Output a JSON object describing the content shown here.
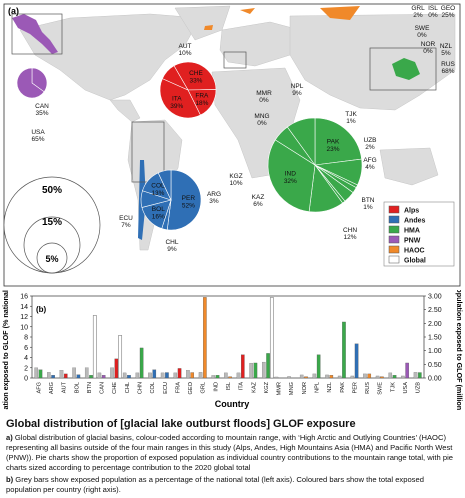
{
  "panel_a": {
    "label": "(a)",
    "legend": [
      {
        "label": "Alps",
        "color": "#e02020"
      },
      {
        "label": "Andes",
        "color": "#2f6fb5"
      },
      {
        "label": "HMA",
        "color": "#3aa84a"
      },
      {
        "label": "PNW",
        "color": "#9b59b6"
      },
      {
        "label": "HAOC",
        "color": "#f0892a"
      },
      {
        "label": "Global",
        "color": "#ffffff"
      }
    ],
    "size_legend": [
      "50%",
      "15%",
      "5%"
    ],
    "map_labels": [
      {
        "text": "AUT",
        "sub": "10%"
      },
      {
        "text": "MMR",
        "sub": "0%"
      },
      {
        "text": "MNG",
        "sub": "0%"
      },
      {
        "text": "NPL",
        "sub": "9%"
      },
      {
        "text": "TJK",
        "sub": "1%"
      },
      {
        "text": "UZB",
        "sub": "2%"
      },
      {
        "text": "AFG",
        "sub": "4%"
      },
      {
        "text": "KGZ",
        "sub": "10%"
      },
      {
        "text": "KAZ",
        "sub": "6%"
      },
      {
        "text": "BTN",
        "sub": "1%"
      },
      {
        "text": "CHN",
        "sub": "12%"
      },
      {
        "text": "CAN",
        "sub": "35%"
      },
      {
        "text": "USA",
        "sub": "65%"
      },
      {
        "text": "ECU",
        "sub": "7%"
      },
      {
        "text": "ARG",
        "sub": "3%"
      },
      {
        "text": "CHL",
        "sub": "9%"
      },
      {
        "text": "GRL",
        "sub": "2%"
      },
      {
        "text": "ISL",
        "sub": "0%"
      },
      {
        "text": "GEO",
        "sub": "25%"
      },
      {
        "text": "SWE",
        "sub": "0%"
      },
      {
        "text": "NOR",
        "sub": "0%"
      },
      {
        "text": "NZL",
        "sub": "5%"
      },
      {
        "text": "RUS",
        "sub": "68%"
      }
    ]
  },
  "chart_data": [
    {
      "type": "pie",
      "name": "Alps",
      "slices": [
        {
          "label": "CHE",
          "value": 33,
          "display": "33%",
          "color": "#e02020"
        },
        {
          "label": "FRA",
          "value": 18,
          "display": "18%",
          "color": "#e02020"
        },
        {
          "label": "ITA",
          "value": 39,
          "display": "39%",
          "color": "#e02020"
        },
        {
          "label": "AUT",
          "value": 10,
          "display": "",
          "color": "#e02020"
        }
      ]
    },
    {
      "type": "pie",
      "name": "PNW",
      "slices": [
        {
          "label": "CAN",
          "value": 35,
          "display": "",
          "color": "#9b59b6"
        },
        {
          "label": "USA",
          "value": 65,
          "display": "",
          "color": "#9b59b6"
        }
      ]
    },
    {
      "type": "pie",
      "name": "HMA",
      "slices": [
        {
          "label": "PAK",
          "value": 23,
          "display": "23%",
          "color": "#3aa84a"
        },
        {
          "label": "NPL",
          "value": 9,
          "display": "",
          "color": "#3aa84a"
        },
        {
          "label": "TJK",
          "value": 1,
          "display": "",
          "color": "#3aa84a"
        },
        {
          "label": "UZB",
          "value": 2,
          "display": "",
          "color": "#3aa84a"
        },
        {
          "label": "AFG",
          "value": 4,
          "display": "",
          "color": "#3aa84a"
        },
        {
          "label": "BTN",
          "value": 1,
          "display": "",
          "color": "#3aa84a"
        },
        {
          "label": "CHN",
          "value": 12,
          "display": "",
          "color": "#3aa84a"
        },
        {
          "label": "IND",
          "value": 32,
          "display": "32%",
          "color": "#3aa84a"
        },
        {
          "label": "KAZ",
          "value": 6,
          "display": "",
          "color": "#3aa84a"
        },
        {
          "label": "KGZ",
          "value": 10,
          "display": "",
          "color": "#3aa84a"
        }
      ]
    },
    {
      "type": "pie",
      "name": "Andes",
      "slices": [
        {
          "label": "PER",
          "value": 52,
          "display": "52%",
          "color": "#2f6fb5"
        },
        {
          "label": "ARG",
          "value": 3,
          "display": "",
          "color": "#2f6fb5"
        },
        {
          "label": "BOL",
          "value": 16,
          "display": "16%",
          "color": "#2f6fb5"
        },
        {
          "label": "CHL",
          "value": 9,
          "display": "",
          "color": "#2f6fb5"
        },
        {
          "label": "COL",
          "value": 13,
          "display": "13%",
          "color": "#2f6fb5"
        },
        {
          "label": "ECU",
          "value": 7,
          "display": "",
          "color": "#2f6fb5"
        }
      ]
    },
    {
      "type": "bar",
      "label": "(b)",
      "categories": [
        "AFG",
        "ARG",
        "AUT",
        "BOL",
        "BTN",
        "CAN",
        "CHE",
        "CHL",
        "CHN",
        "COL",
        "ECU",
        "FRA",
        "GEO",
        "GRL",
        "IND",
        "ISL",
        "ITA",
        "KAZ",
        "KGZ",
        "MMR",
        "MNG",
        "NOR",
        "NPL",
        "NZL",
        "PAK",
        "PER",
        "RUS",
        "SWE",
        "TJK",
        "USA",
        "UZB"
      ],
      "regions": [
        "HMA",
        "Andes",
        "Alps",
        "Andes",
        "HMA",
        "PNW",
        "Alps",
        "Andes",
        "HMA",
        "Andes",
        "Andes",
        "Alps",
        "HAOC",
        "HAOC",
        "HMA",
        "HAOC",
        "Alps",
        "HMA",
        "HMA",
        "HMA",
        "HMA",
        "HAOC",
        "HMA",
        "HAOC",
        "HMA",
        "Andes",
        "HAOC",
        "HAOC",
        "HMA",
        "PNW",
        "HMA"
      ],
      "series": [
        {
          "axis": "left",
          "values": [
            2.0,
            1.1,
            1.5,
            2.0,
            2.0,
            1.0,
            2.0,
            1.0,
            1.0,
            1.0,
            1.0,
            1.0,
            1.5,
            1.1,
            0.5,
            1.0,
            1.0,
            2.9,
            3.1,
            0.2,
            0.3,
            0.6,
            0.8,
            0.6,
            0.4,
            0.4,
            0.8,
            0.4,
            1.0,
            0.4,
            1.1
          ]
        },
        {
          "axis": "right",
          "values": [
            0.3,
            0.1,
            0.15,
            0.12,
            0.1,
            0.1,
            0.7,
            0.1,
            1.1,
            0.3,
            0.2,
            0.35,
            0.2,
            2.95,
            0.1,
            0.05,
            0.85,
            0.55,
            0.9,
            0.0,
            0.0,
            0.05,
            0.85,
            0.1,
            2.05,
            1.25,
            0.15,
            0.05,
            0.1,
            0.55,
            0.2
          ]
        },
        {
          "axis": "left",
          "values": [
            0.0,
            0.0,
            0.0,
            0.0,
            12.2,
            0.0,
            8.3,
            0.0,
            0.0,
            0.0,
            0.0,
            0.0,
            0.0,
            0.0,
            0.0,
            0.0,
            0.0,
            0.0,
            15.7,
            0.0,
            0.0,
            0.0,
            0.0,
            0.0,
            0.0,
            0.0,
            0.0,
            0.0,
            0.0,
            0.0,
            0.0
          ]
        }
      ],
      "y_left": {
        "label": "Population exposed to GLOF (% national total)",
        "ticks": [
          "0",
          "2",
          "4",
          "6",
          "8",
          "10",
          "12",
          "14",
          "16"
        ],
        "range": [
          0,
          16
        ]
      },
      "y_right": {
        "label": "Population exposed to GLOF (millions)",
        "ticks": [
          "0.00",
          "0.50",
          "1.00",
          "1.50",
          "2.00",
          "2.50",
          "3.00"
        ],
        "range": [
          0,
          3
        ]
      },
      "xlabel": "Country"
    }
  ],
  "caption": {
    "title": "Global distribution of [glacial lake outburst floods] GLOF exposure",
    "a_label": "a)",
    "a_text": "Global distribution of glacial basins, colour-coded according to mountain range, with ‘High Arctic and Outlying Countries’ (HAOC) representing all basins outside of the four main ranges in this study (Alps, Andes, High Mountains Asia (HMA) and Pacific North West (PNW)). Pie charts show the proportion of exposed population as individual country contributions to the mountain range total, with pie charts sized according to percentage contribution to the 2020 global total",
    "b_label": "b)",
    "b_text": "Grey bars show exposed population as a percentage of the national total (left axis). Coloured bars show the total exposed population per country (right axis)."
  }
}
